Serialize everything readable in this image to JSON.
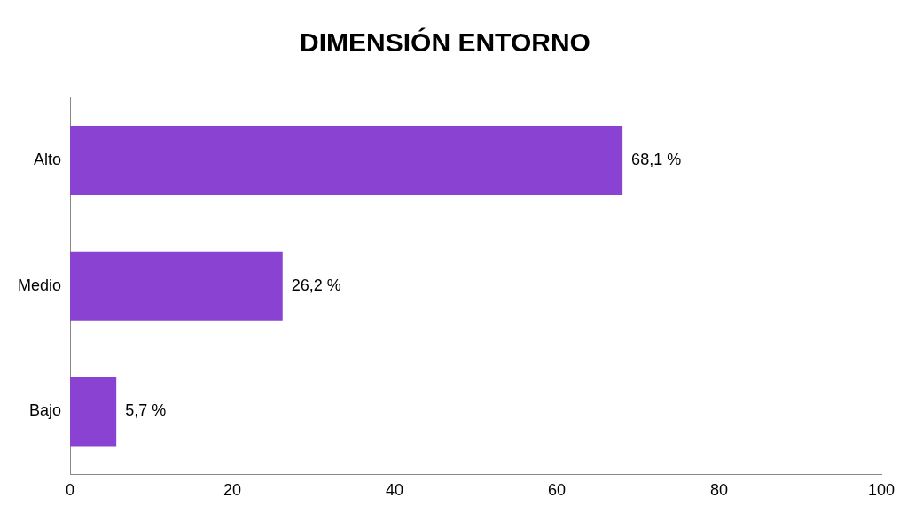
{
  "chart_data": {
    "type": "bar",
    "orientation": "horizontal",
    "title": "DIMENSIÓN ENTORNO",
    "categories": [
      "Alto",
      "Medio",
      "Bajo"
    ],
    "values": [
      68.1,
      26.2,
      5.7
    ],
    "value_labels": [
      "68,1 %",
      "26,2 %",
      "5,7 %"
    ],
    "color": "#8a42d2",
    "xlim": [
      0,
      100
    ],
    "xticks": [
      0,
      20,
      40,
      60,
      80,
      100
    ],
    "grid": false
  }
}
